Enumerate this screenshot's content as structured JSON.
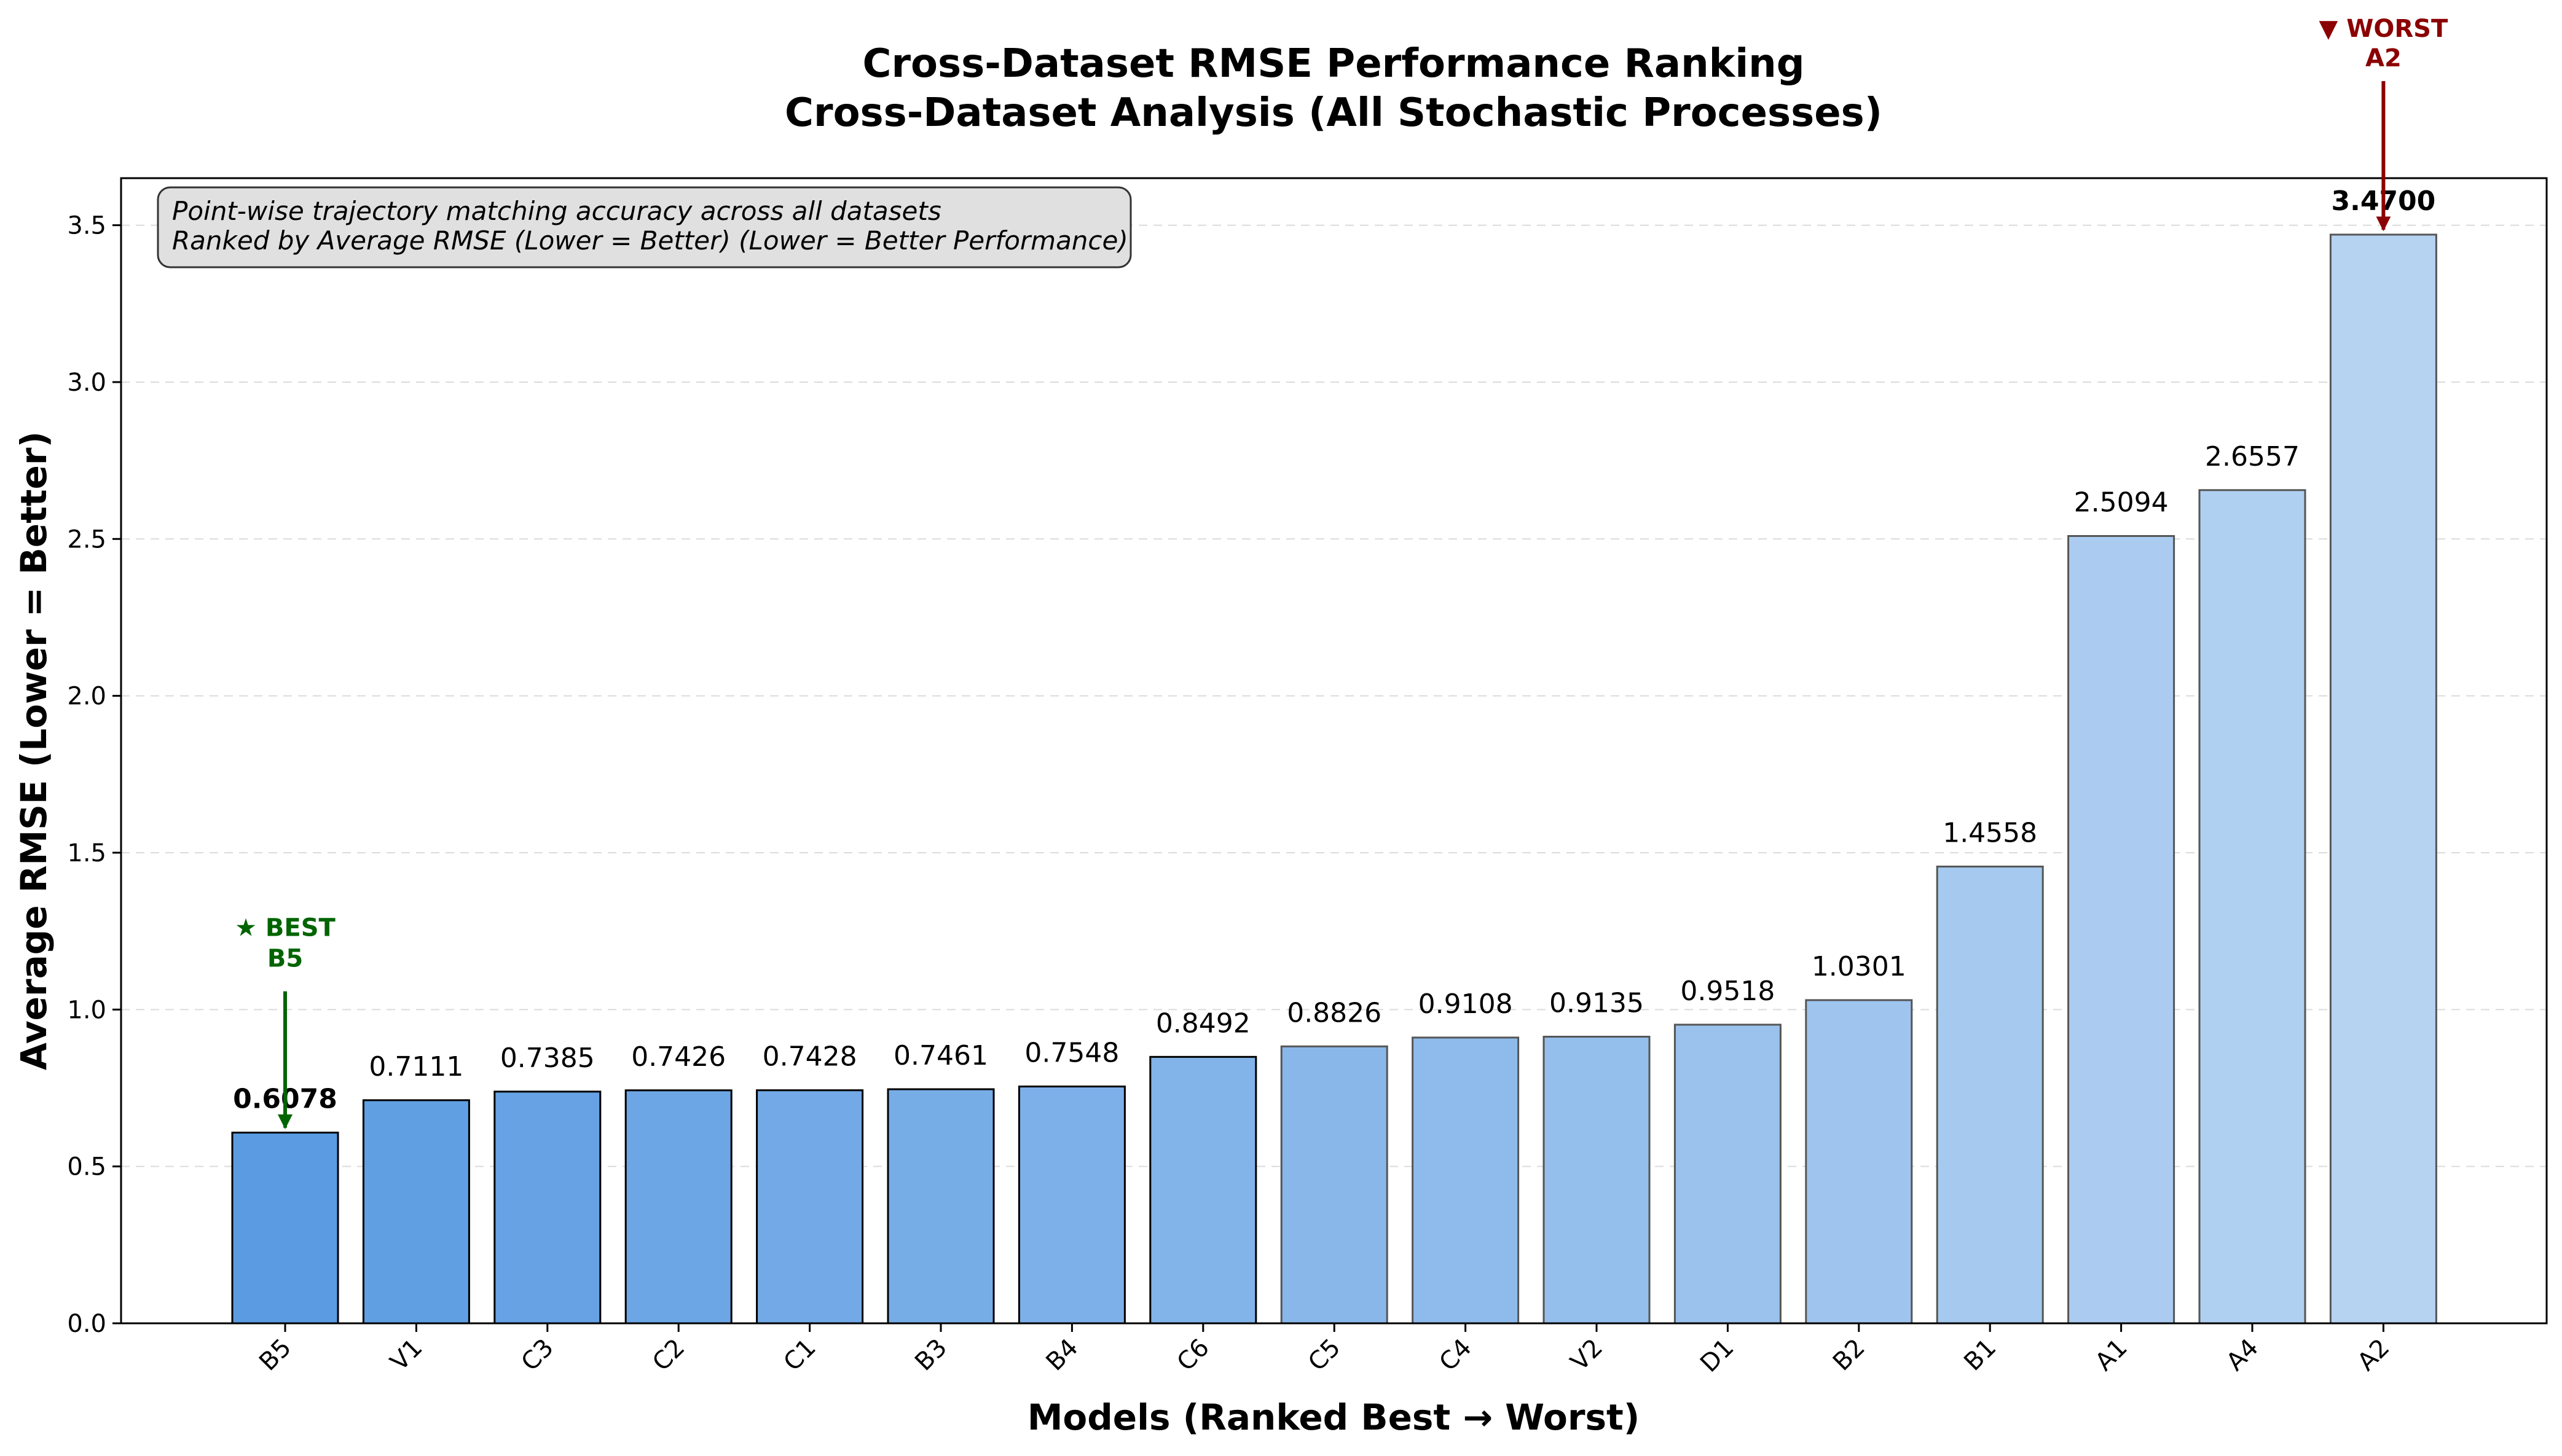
{
  "chart_data": {
    "type": "bar",
    "title": "Cross-Dataset RMSE Performance Ranking",
    "subtitle": "Cross-Dataset Analysis (All Stochastic Processes)",
    "xlabel": "Models (Ranked Best → Worst)",
    "ylabel": "Average RMSE (Lower = Better)",
    "ylim": [
      0,
      3.65
    ],
    "yticks": [
      0.0,
      0.5,
      1.0,
      1.5,
      2.0,
      2.5,
      3.0,
      3.5
    ],
    "ytick_labels": [
      "0.0",
      "0.5",
      "1.0",
      "1.5",
      "2.0",
      "2.5",
      "3.0",
      "3.5"
    ],
    "grid": true,
    "categories": [
      "B5",
      "V1",
      "C3",
      "C2",
      "C1",
      "B3",
      "B4",
      "C6",
      "C5",
      "C4",
      "V2",
      "D1",
      "B2",
      "B1",
      "A1",
      "A4",
      "A2"
    ],
    "values": [
      0.6078,
      0.7111,
      0.7385,
      0.7426,
      0.7428,
      0.7461,
      0.7548,
      0.8492,
      0.8826,
      0.9108,
      0.9135,
      0.9518,
      1.0301,
      1.4558,
      2.5094,
      2.6557,
      3.47
    ],
    "value_labels": [
      "0.6078",
      "0.7111",
      "0.7385",
      "0.7426",
      "0.7428",
      "0.7461",
      "0.7548",
      "0.8492",
      "0.8826",
      "0.9108",
      "0.9135",
      "0.9518",
      "1.0301",
      "1.4558",
      "2.5094",
      "2.6557",
      "3.4700"
    ],
    "annotation_box": {
      "lines": [
        "Point-wise trajectory matching accuracy across all datasets",
        "Ranked by Average RMSE (Lower = Better) (Lower = Better Performance)"
      ],
      "placement": "top-left"
    },
    "best": {
      "label_line1": "★ BEST",
      "label_line2": "B5",
      "color": "#006400"
    },
    "worst": {
      "label_line1": "▼ WORST",
      "label_line2": "A2",
      "color": "#8b0000"
    },
    "colors": {
      "bar_dark": "#5b9be2",
      "bar_light": "#b6d3f2"
    }
  }
}
